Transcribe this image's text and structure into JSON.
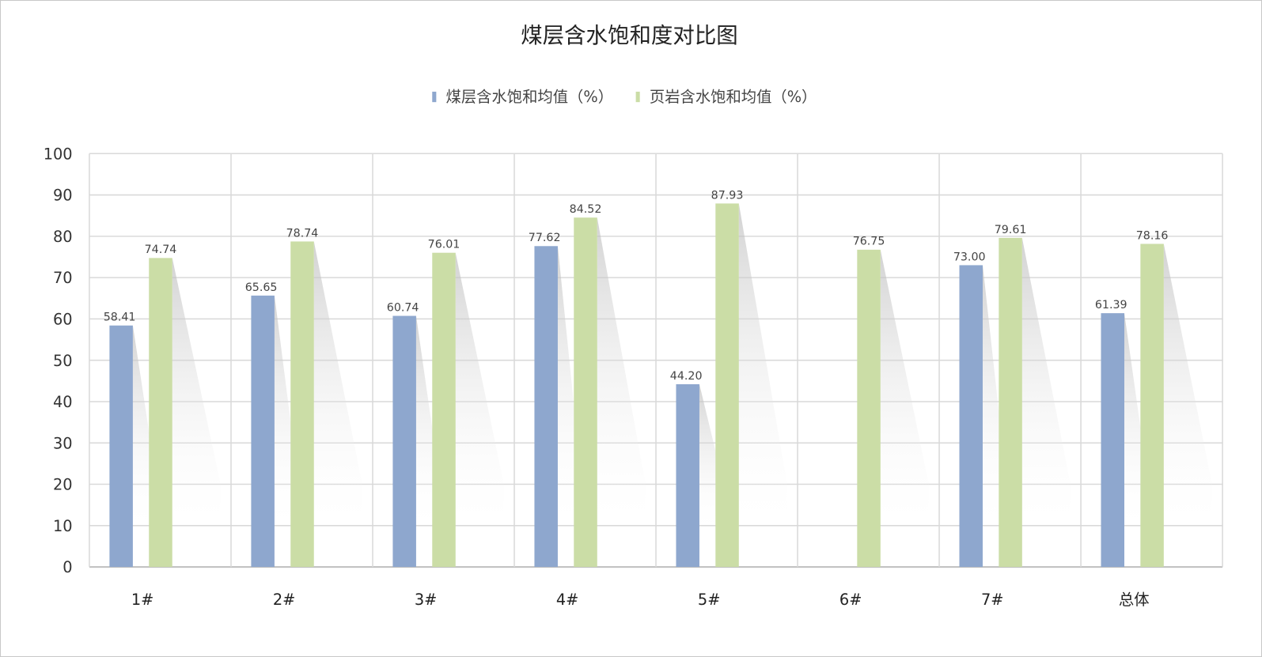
{
  "chart_data": {
    "type": "bar",
    "title": "煤层含水饱和度对比图",
    "categories": [
      "1#",
      "2#",
      "3#",
      "4#",
      "5#",
      "6#",
      "7#",
      "总体"
    ],
    "series": [
      {
        "name": "煤层含水饱和均值（%）",
        "color": "#8EA7CE",
        "values": [
          58.41,
          65.65,
          60.74,
          77.62,
          44.2,
          null,
          73.0,
          61.39
        ],
        "labels": [
          "58.41",
          "65.65",
          "60.74",
          "77.62",
          "44.20",
          null,
          "73.00",
          "61.39"
        ]
      },
      {
        "name": "页岩含水饱和均值（%）",
        "color": "#CBDDA6",
        "values": [
          74.74,
          78.74,
          76.01,
          84.52,
          87.93,
          76.75,
          79.61,
          78.16
        ],
        "labels": [
          "74.74",
          "78.74",
          "76.01",
          "84.52",
          "87.93",
          "76.75",
          "79.61",
          "78.16"
        ]
      }
    ],
    "ylim": [
      0,
      100
    ],
    "yticks": [
      "0",
      "10",
      "20",
      "30",
      "40",
      "50",
      "60",
      "70",
      "80",
      "90",
      "100"
    ],
    "grid": true,
    "legend_position": "top"
  }
}
